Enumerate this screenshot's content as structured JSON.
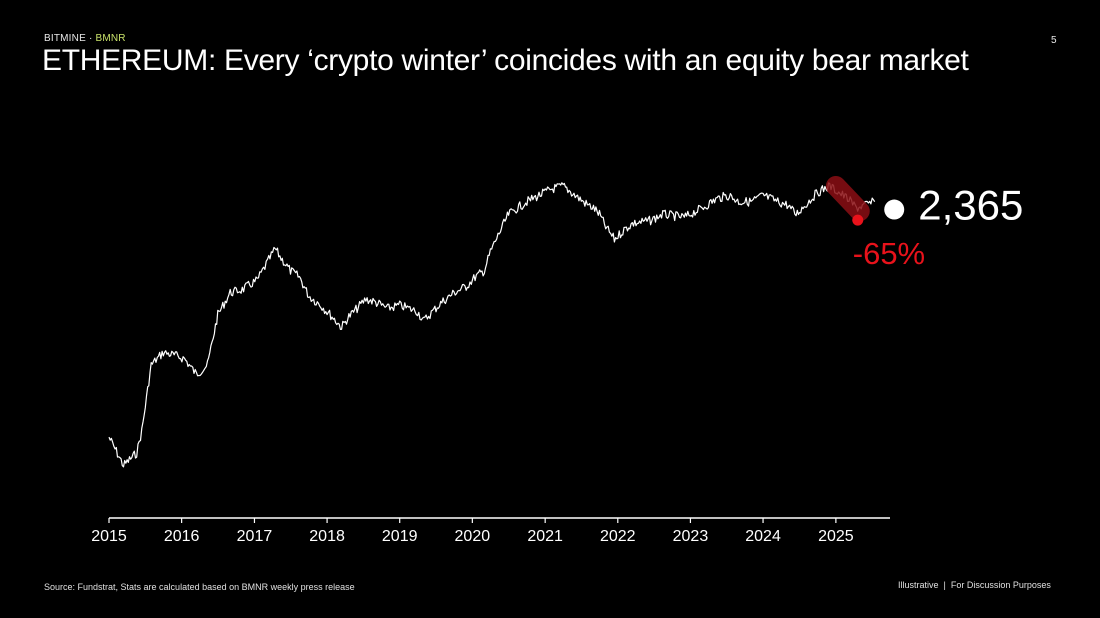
{
  "header": {
    "brand": "BITMINE",
    "separator": " · ",
    "ticker": "BMNR",
    "page_number": "5",
    "title": "ETHEREUM: Every ‘crypto winter’ coincides with an equity bear market"
  },
  "footer": {
    "source": "Source: Fundstrat, Stats are calculated based on BMNR weekly press release",
    "note_left": "Illustrative",
    "note_sep": "|",
    "note_right": "For Discussion Purposes"
  },
  "colors": {
    "background": "#000000",
    "line": "#ffffff",
    "drawdown": "#e8121b",
    "drawdown_band": "#8b0f14",
    "ticker": "#c9e26a"
  },
  "chart_data": {
    "type": "line",
    "title": "",
    "xlabel": "",
    "ylabel": "",
    "y_axis_visible": false,
    "grid": false,
    "x_ticks": [
      "2015",
      "2016",
      "2017",
      "2018",
      "2019",
      "2020",
      "2021",
      "2022",
      "2023",
      "2024",
      "2025"
    ],
    "xlim": [
      "2015-01-01",
      "2025-09-30"
    ],
    "series": [
      {
        "values_relative_scale": "relative level, top of price range = 100",
        "points": [
          [
            "2015-01-01",
            20
          ],
          [
            "2015-03-15",
            11
          ],
          [
            "2015-05-20",
            15
          ],
          [
            "2015-06-15",
            22
          ],
          [
            "2015-08-01",
            43
          ],
          [
            "2015-10-01",
            47
          ],
          [
            "2015-12-01",
            46
          ],
          [
            "2016-01-15",
            45
          ],
          [
            "2016-03-15",
            40
          ],
          [
            "2016-05-10",
            43
          ],
          [
            "2016-07-01",
            59
          ],
          [
            "2016-09-01",
            66
          ],
          [
            "2016-11-01",
            67
          ],
          [
            "2017-01-15",
            70
          ],
          [
            "2017-03-01",
            75
          ],
          [
            "2017-04-15",
            80
          ],
          [
            "2017-05-15",
            77
          ],
          [
            "2017-07-01",
            73
          ],
          [
            "2017-08-15",
            71
          ],
          [
            "2017-10-01",
            65
          ],
          [
            "2017-12-01",
            62
          ],
          [
            "2018-02-01",
            58
          ],
          [
            "2018-03-15",
            55
          ],
          [
            "2018-04-15",
            58
          ],
          [
            "2018-06-01",
            61
          ],
          [
            "2018-07-15",
            64
          ],
          [
            "2018-09-01",
            63
          ],
          [
            "2018-11-01",
            61
          ],
          [
            "2019-01-01",
            62
          ],
          [
            "2019-02-15",
            61
          ],
          [
            "2019-04-01",
            60
          ],
          [
            "2019-05-01",
            57
          ],
          [
            "2019-06-15",
            60
          ],
          [
            "2019-08-01",
            63
          ],
          [
            "2019-10-01",
            66
          ],
          [
            "2019-12-01",
            68
          ],
          [
            "2020-01-15",
            71
          ],
          [
            "2020-03-01",
            73
          ],
          [
            "2020-04-01",
            79
          ],
          [
            "2020-05-15",
            85
          ],
          [
            "2020-07-01",
            91
          ],
          [
            "2020-08-15",
            93
          ],
          [
            "2020-10-01",
            95
          ],
          [
            "2020-12-01",
            97
          ],
          [
            "2021-02-01",
            99
          ],
          [
            "2021-04-01",
            100
          ],
          [
            "2021-06-01",
            97
          ],
          [
            "2021-08-01",
            94
          ],
          [
            "2021-09-01",
            93
          ],
          [
            "2021-10-01",
            91
          ],
          [
            "2021-11-01",
            87
          ],
          [
            "2021-12-15",
            83
          ],
          [
            "2022-02-01",
            86
          ],
          [
            "2022-03-15",
            88
          ],
          [
            "2022-06-15",
            89
          ],
          [
            "2022-08-15",
            91
          ],
          [
            "2022-12-01",
            90
          ],
          [
            "2023-03-01",
            93
          ],
          [
            "2023-05-15",
            96
          ],
          [
            "2023-07-15",
            97
          ],
          [
            "2023-09-01",
            95
          ],
          [
            "2023-11-01",
            95
          ],
          [
            "2024-01-01",
            97
          ],
          [
            "2024-03-15",
            95
          ],
          [
            "2024-05-01",
            94
          ],
          [
            "2024-06-15",
            91
          ],
          [
            "2024-08-01",
            94
          ],
          [
            "2024-10-01",
            98
          ],
          [
            "2024-12-01",
            100
          ],
          [
            "2025-01-15",
            98
          ],
          [
            "2025-03-01",
            96
          ],
          [
            "2025-04-15",
            93
          ],
          [
            "2025-06-01",
            94
          ],
          [
            "2025-07-15",
            95
          ]
        ]
      }
    ],
    "drawdown": {
      "label": "-65%",
      "start": [
        "2025-01-01",
        100
      ],
      "end": [
        "2025-05-01",
        92
      ]
    },
    "latest": {
      "label": "2,365",
      "point": [
        "2025-09-01",
        96
      ]
    }
  }
}
